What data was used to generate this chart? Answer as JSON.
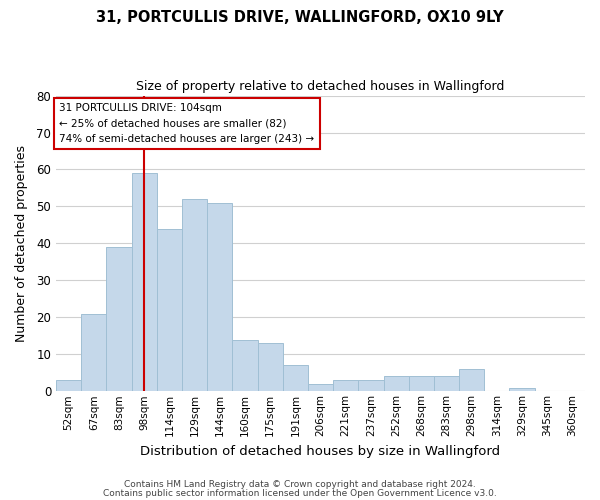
{
  "title1": "31, PORTCULLIS DRIVE, WALLINGFORD, OX10 9LY",
  "title2": "Size of property relative to detached houses in Wallingford",
  "xlabel": "Distribution of detached houses by size in Wallingford",
  "ylabel": "Number of detached properties",
  "footer1": "Contains HM Land Registry data © Crown copyright and database right 2024.",
  "footer2": "Contains public sector information licensed under the Open Government Licence v3.0.",
  "bin_labels": [
    "52sqm",
    "67sqm",
    "83sqm",
    "98sqm",
    "114sqm",
    "129sqm",
    "144sqm",
    "160sqm",
    "175sqm",
    "191sqm",
    "206sqm",
    "221sqm",
    "237sqm",
    "252sqm",
    "268sqm",
    "283sqm",
    "298sqm",
    "314sqm",
    "329sqm",
    "345sqm",
    "360sqm"
  ],
  "bar_heights": [
    3,
    21,
    39,
    59,
    44,
    52,
    51,
    14,
    13,
    7,
    2,
    3,
    3,
    4,
    4,
    4,
    6,
    0,
    1,
    0,
    0
  ],
  "bar_color": "#c5d8ea",
  "bar_edge_color": "#a0bfd4",
  "grid_color": "#d0d0d0",
  "vline_x": 3.5,
  "vline_color": "#cc0000",
  "annotation_title": "31 PORTCULLIS DRIVE: 104sqm",
  "annotation_line1": "← 25% of detached houses are smaller (82)",
  "annotation_line2": "74% of semi-detached houses are larger (243) →",
  "annotation_box_color": "#ffffff",
  "annotation_box_edge": "#cc0000",
  "ylim": [
    0,
    80
  ],
  "yticks": [
    0,
    10,
    20,
    30,
    40,
    50,
    60,
    70,
    80
  ],
  "bg_color": "#ffffff"
}
